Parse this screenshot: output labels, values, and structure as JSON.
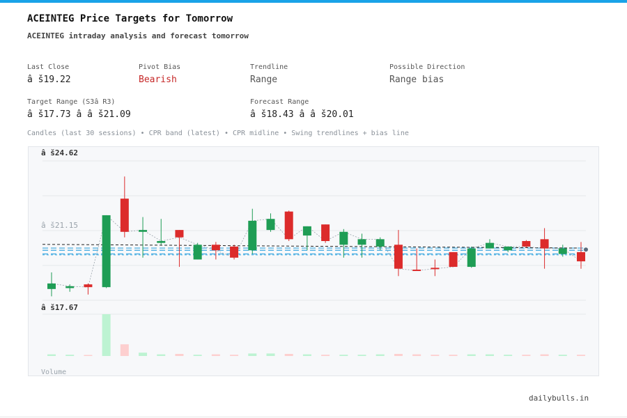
{
  "header": {
    "title": "ACEINTEG Price Targets for Tomorrow",
    "subtitle": "ACEINTEG intraday analysis and forecast tomorrow"
  },
  "stats": {
    "last_close": {
      "label": "Last Close",
      "value": "â š19.22"
    },
    "pivot_bias": {
      "label": "Pivot Bias",
      "value": "Bearish"
    },
    "trendline": {
      "label": "Trendline",
      "value": "Range"
    },
    "possible_direction": {
      "label": "Possible Direction",
      "value": "Range bias"
    },
    "target_range": {
      "label": "Target Range (S3â  R3)",
      "value": "â š17.73 â   â š21.09"
    },
    "forecast_range": {
      "label": "Forecast Range",
      "value": "â š18.43 â   â š20.01"
    }
  },
  "caption": "Candles (last 30 sessions) • CPR band (latest) • CPR midline • Swing trendlines + bias line",
  "footer": "dailybulls.in",
  "colors": {
    "up": "#1f9d55",
    "down": "#dc2b2b",
    "cpr": "#3aa7e0",
    "vol_up": "#bdf3d2",
    "vol_down": "#fdcfcf"
  },
  "chart_data": {
    "type": "candlestick",
    "ylim": [
      16.9,
      25.4
    ],
    "ytick_labels": [
      "â š24.62",
      "â š21.15",
      "â š17.67"
    ],
    "volume_label": "Volume",
    "candles": [
      {
        "o": 17.7,
        "h": 18.6,
        "l": 17.3,
        "c": 18.0
      },
      {
        "o": 17.75,
        "h": 17.95,
        "l": 17.55,
        "c": 17.85
      },
      {
        "o": 17.95,
        "h": 18.0,
        "l": 17.4,
        "c": 17.8
      },
      {
        "o": 17.8,
        "h": 21.7,
        "l": 17.75,
        "c": 21.7
      },
      {
        "o": 22.6,
        "h": 23.8,
        "l": 20.5,
        "c": 20.8
      },
      {
        "o": 20.8,
        "h": 21.6,
        "l": 19.4,
        "c": 20.9
      },
      {
        "o": 20.2,
        "h": 21.5,
        "l": 20.1,
        "c": 20.3
      },
      {
        "o": 20.9,
        "h": 20.9,
        "l": 18.9,
        "c": 20.5
      },
      {
        "o": 19.3,
        "h": 20.2,
        "l": 19.3,
        "c": 20.1
      },
      {
        "o": 20.1,
        "h": 20.25,
        "l": 19.3,
        "c": 19.8
      },
      {
        "o": 20.0,
        "h": 20.1,
        "l": 19.3,
        "c": 19.4
      },
      {
        "o": 19.8,
        "h": 22.05,
        "l": 19.6,
        "c": 21.4
      },
      {
        "o": 20.9,
        "h": 21.8,
        "l": 20.8,
        "c": 21.5
      },
      {
        "o": 21.9,
        "h": 21.95,
        "l": 20.3,
        "c": 20.4
      },
      {
        "o": 20.6,
        "h": 21.1,
        "l": 19.8,
        "c": 21.1
      },
      {
        "o": 21.2,
        "h": 21.2,
        "l": 20.2,
        "c": 20.3
      },
      {
        "o": 20.1,
        "h": 20.95,
        "l": 19.4,
        "c": 20.8
      },
      {
        "o": 20.1,
        "h": 20.7,
        "l": 19.4,
        "c": 20.4
      },
      {
        "o": 20.0,
        "h": 20.5,
        "l": 19.8,
        "c": 20.4
      },
      {
        "o": 20.1,
        "h": 20.9,
        "l": 18.4,
        "c": 18.8
      },
      {
        "o": 18.75,
        "h": 19.9,
        "l": 18.7,
        "c": 18.7
      },
      {
        "o": 18.85,
        "h": 19.3,
        "l": 18.4,
        "c": 18.8
      },
      {
        "o": 19.7,
        "h": 19.7,
        "l": 18.9,
        "c": 18.9
      },
      {
        "o": 18.9,
        "h": 20.0,
        "l": 18.85,
        "c": 19.9
      },
      {
        "o": 19.9,
        "h": 20.4,
        "l": 19.9,
        "c": 20.2
      },
      {
        "o": 19.8,
        "h": 20.0,
        "l": 19.7,
        "c": 20.0
      },
      {
        "o": 20.3,
        "h": 20.35,
        "l": 19.95,
        "c": 20.0
      },
      {
        "o": 20.4,
        "h": 21.0,
        "l": 18.8,
        "c": 19.9
      },
      {
        "o": 19.6,
        "h": 20.1,
        "l": 19.45,
        "c": 19.9
      },
      {
        "o": 19.7,
        "h": 20.25,
        "l": 18.8,
        "c": 19.2
      }
    ],
    "volume": [
      0.04,
      0.03,
      0.02,
      1.0,
      0.28,
      0.08,
      0.04,
      0.05,
      0.03,
      0.04,
      0.03,
      0.06,
      0.06,
      0.05,
      0.04,
      0.03,
      0.03,
      0.03,
      0.04,
      0.05,
      0.04,
      0.03,
      0.03,
      0.04,
      0.04,
      0.03,
      0.03,
      0.04,
      0.03,
      0.03
    ],
    "cpr_band": [
      19.6,
      19.8,
      19.92
    ],
    "cpr_midline": 19.55,
    "trendlines": [
      {
        "from": 20.12,
        "to": 19.92
      }
    ],
    "bias_line_value": 19.8
  }
}
